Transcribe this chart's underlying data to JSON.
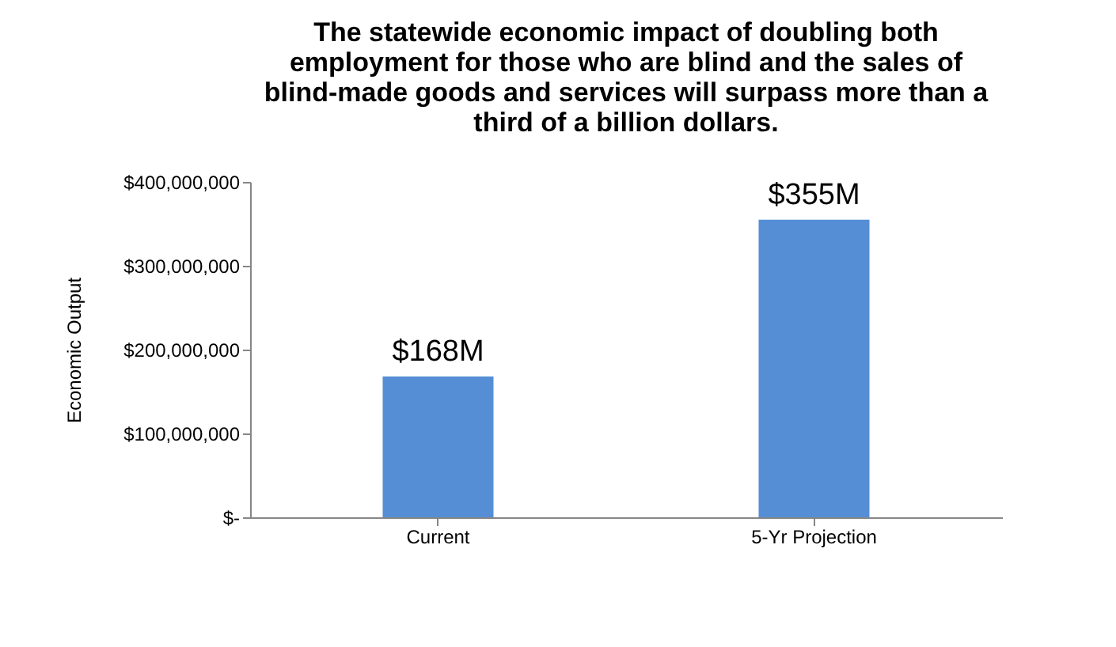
{
  "chart_data": {
    "type": "bar",
    "title": "The statewide economic impact of doubling both employment for those who are blind and the sales of blind-made goods and services will surpass more than a third of a billion dollars.",
    "ylabel": "Economic Output",
    "categories": [
      "Current",
      "5-Yr Projection"
    ],
    "values": [
      168000000,
      355000000
    ],
    "value_labels": [
      "$168M",
      "$355M"
    ],
    "color": "#558ed5",
    "ylim": [
      0,
      400000000
    ],
    "yticks": [
      {
        "value": 0,
        "label": "$-"
      },
      {
        "value": 100000000,
        "label": "$100,000,000"
      },
      {
        "value": 200000000,
        "label": "$200,000,000"
      },
      {
        "value": 300000000,
        "label": "$300,000,000"
      },
      {
        "value": 400000000,
        "label": "$400,000,000"
      }
    ],
    "grid": false
  }
}
